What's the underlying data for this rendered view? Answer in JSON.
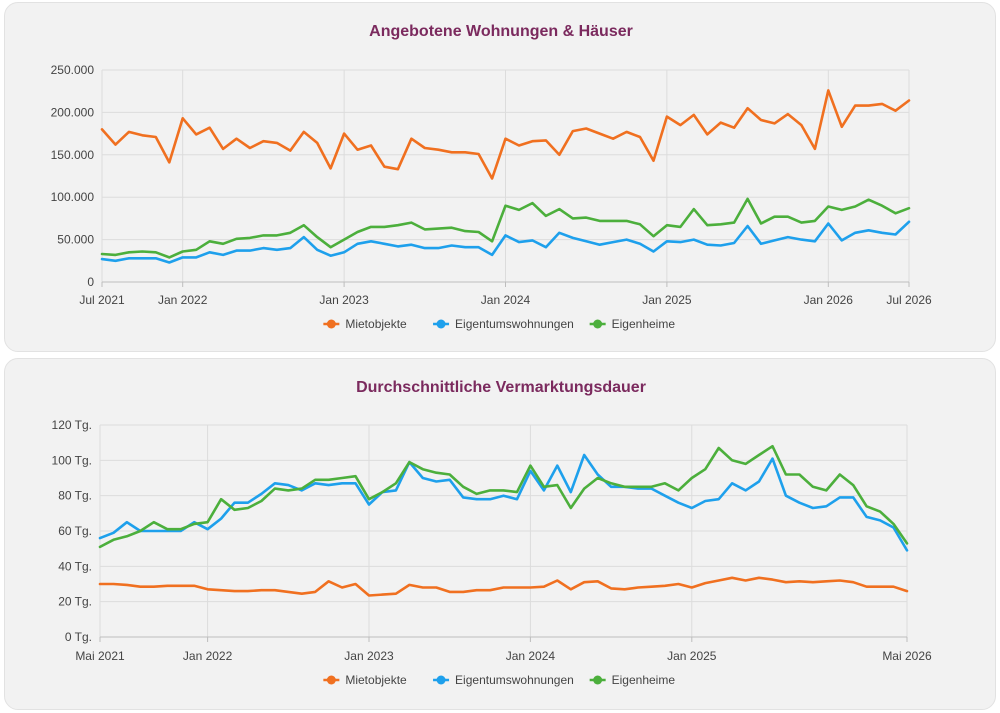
{
  "colors": {
    "miet": "#f07020",
    "eigentum": "#1ea0ec",
    "heime": "#4caf3c",
    "title": "#7b2a5e"
  },
  "chart_data": [
    {
      "type": "line",
      "title": "Angebotene Wohnungen & Häuser",
      "ylim": [
        0,
        250000
      ],
      "yticks": [
        "0",
        "50.000",
        "100.000",
        "150.000",
        "200.000",
        "250.000"
      ],
      "ytick_values": [
        0,
        50000,
        100000,
        150000,
        200000,
        250000
      ],
      "x_range": [
        0,
        60
      ],
      "xticks": [
        {
          "label": "Jul 2021",
          "x": 0
        },
        {
          "label": "Jan 2022",
          "x": 6
        },
        {
          "label": "Jan 2023",
          "x": 18
        },
        {
          "label": "Jan 2024",
          "x": 30
        },
        {
          "label": "Jan 2025",
          "x": 42
        },
        {
          "label": "Jan 2026",
          "x": 54
        },
        {
          "label": "Jul 2026",
          "x": 60
        }
      ],
      "grid": true,
      "legend_position": "bottom",
      "series": [
        {
          "name": "Mietobjekte",
          "color_key": "miet",
          "values": [
            180000,
            162000,
            177000,
            173000,
            171000,
            141000,
            193000,
            174000,
            182000,
            157000,
            169000,
            158000,
            166000,
            164000,
            155000,
            177000,
            164000,
            134000,
            175000,
            156000,
            161000,
            136000,
            133000,
            169000,
            158000,
            156000,
            153000,
            153000,
            151000,
            122000,
            169000,
            161000,
            166000,
            167000,
            150000,
            178000,
            181000,
            175000,
            169000,
            177000,
            171000,
            143000,
            195000,
            185000,
            197000,
            174000,
            188000,
            182000,
            205000,
            191000,
            187000,
            198000,
            185000,
            157000,
            226000,
            183000,
            208000,
            208000,
            210000,
            202000,
            214000
          ]
        },
        {
          "name": "Eigentumswohnungen",
          "color_key": "eigentum",
          "values": [
            27000,
            25000,
            28000,
            28000,
            28000,
            23000,
            29000,
            29000,
            35000,
            32000,
            37000,
            37000,
            40000,
            38000,
            40000,
            53000,
            38000,
            31000,
            35000,
            45000,
            48000,
            45000,
            42000,
            44000,
            40000,
            40000,
            43000,
            41000,
            41000,
            32000,
            55000,
            47000,
            49000,
            41000,
            58000,
            52000,
            48000,
            44000,
            47000,
            50000,
            45000,
            36000,
            48000,
            47000,
            50000,
            44000,
            43000,
            46000,
            66000,
            45000,
            49000,
            53000,
            50000,
            48000,
            69000,
            49000,
            58000,
            61000,
            58000,
            56000,
            71000
          ]
        },
        {
          "name": "Eigenheime",
          "color_key": "heime",
          "values": [
            33000,
            32000,
            35000,
            36000,
            35000,
            29000,
            36000,
            38000,
            48000,
            45000,
            51000,
            52000,
            55000,
            55000,
            58000,
            67000,
            53000,
            41000,
            50000,
            59000,
            65000,
            65000,
            67000,
            70000,
            62000,
            63000,
            64000,
            60000,
            59000,
            48000,
            90000,
            85000,
            93000,
            78000,
            86000,
            75000,
            76000,
            72000,
            72000,
            72000,
            68000,
            54000,
            67000,
            65000,
            86000,
            67000,
            68000,
            70000,
            98000,
            69000,
            77000,
            77000,
            70000,
            72000,
            89000,
            85000,
            89000,
            97000,
            90000,
            81000,
            87000
          ]
        }
      ]
    },
    {
      "type": "line",
      "title": "Durchschnittliche Vermarktungsdauer",
      "ylim": [
        0,
        120
      ],
      "yticks": [
        "0 Tg.",
        "20 Tg.",
        "40 Tg.",
        "60 Tg.",
        "80 Tg.",
        "100 Tg.",
        "120 Tg."
      ],
      "ytick_values": [
        0,
        20,
        40,
        60,
        80,
        100,
        120
      ],
      "x_range": [
        0,
        60
      ],
      "xticks": [
        {
          "label": "Mai 2021",
          "x": 0
        },
        {
          "label": "Jan 2022",
          "x": 8
        },
        {
          "label": "Jan 2023",
          "x": 20
        },
        {
          "label": "Jan 2024",
          "x": 32
        },
        {
          "label": "Jan 2025",
          "x": 44
        },
        {
          "label": "Mai 2026",
          "x": 60
        }
      ],
      "grid": true,
      "legend_position": "bottom",
      "series": [
        {
          "name": "Mietobjekte",
          "color_key": "miet",
          "values": [
            30,
            30,
            29.5,
            28.5,
            28.5,
            29,
            29,
            29,
            27,
            26.5,
            26,
            26,
            26.5,
            26.5,
            25.5,
            24.5,
            25.5,
            31.5,
            28,
            30,
            23.5,
            24,
            24.5,
            29.5,
            28,
            28,
            25.5,
            25.5,
            26.5,
            26.5,
            28,
            28,
            28,
            28.5,
            32,
            27,
            31,
            31.5,
            27.5,
            27,
            28,
            28.5,
            29,
            30,
            28,
            30.5,
            32,
            33.5,
            32,
            33.5,
            32.5,
            31,
            31.5,
            31,
            31.5,
            32,
            31,
            28.5,
            28.5,
            28.5,
            26
          ]
        },
        {
          "name": "Eigentumswohnungen",
          "color_key": "eigentum",
          "values": [
            56,
            59,
            65,
            60,
            60,
            60,
            60,
            65,
            61,
            67,
            76,
            76,
            81,
            87,
            86,
            83,
            87,
            86,
            87,
            87,
            75,
            82,
            83,
            99,
            90,
            88,
            89,
            79,
            78,
            78,
            80,
            78,
            94,
            83,
            97,
            82,
            103,
            92,
            85,
            85,
            84,
            84,
            80,
            76,
            73,
            77,
            78,
            87,
            83,
            88,
            101,
            80,
            76,
            73,
            74,
            79,
            79,
            68,
            66,
            62,
            49
          ]
        },
        {
          "name": "Eigenheime",
          "color_key": "heime",
          "values": [
            51,
            55,
            57,
            60,
            65,
            61,
            61,
            64,
            65,
            78,
            72,
            73,
            77,
            84,
            83,
            84,
            89,
            89,
            90,
            91,
            78,
            82,
            87,
            99,
            95,
            93,
            92,
            85,
            81,
            83,
            83,
            82,
            97,
            85,
            86,
            73,
            84,
            90,
            87,
            85,
            85,
            85,
            87,
            83,
            90,
            95,
            107,
            100,
            98,
            103,
            108,
            92,
            92,
            85,
            83,
            92,
            86,
            74,
            71,
            64,
            53
          ]
        }
      ]
    }
  ]
}
